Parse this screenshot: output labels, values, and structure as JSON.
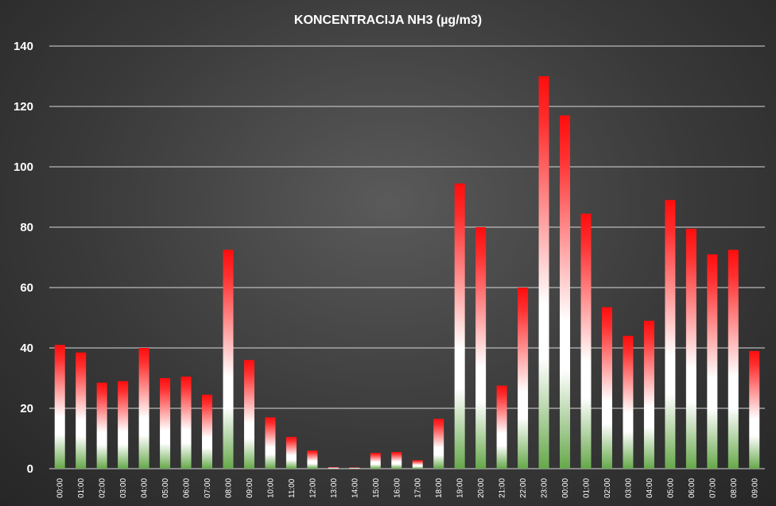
{
  "chart_data": {
    "type": "bar",
    "title": "KONCENTRACIJA  NH3  (µg/m3)",
    "xlabel": "",
    "ylabel": "",
    "ylim": [
      0,
      140
    ],
    "yticks": [
      0,
      20,
      40,
      60,
      80,
      100,
      120,
      140
    ],
    "grid": true,
    "categories": [
      "00:00",
      "01:00",
      "02:00",
      "03:00",
      "04:00",
      "05:00",
      "06:00",
      "07:00",
      "08:00",
      "09:00",
      "10:00",
      "11:00",
      "12:00",
      "13:00",
      "14:00",
      "15:00",
      "16:00",
      "17:00",
      "18:00",
      "19:00",
      "20:00",
      "21:00",
      "22:00",
      "23:00",
      "00:00",
      "01:00",
      "02:00",
      "03:00",
      "04:00",
      "05:00",
      "06:00",
      "07:00",
      "08:00",
      "09:00"
    ],
    "values": [
      41,
      38.5,
      28.5,
      29,
      40,
      30,
      30.5,
      24.5,
      72.5,
      36,
      17,
      10.5,
      6,
      0.5,
      0.4,
      5.2,
      5.5,
      2.8,
      16.5,
      94.5,
      80,
      27.5,
      60,
      130,
      117,
      84.5,
      53.5,
      44,
      49,
      89,
      79.5,
      71,
      72.5,
      39
    ],
    "colors": {
      "top": "#ff0000",
      "middle": "#ffffff",
      "bottom": "#6aa84f"
    }
  }
}
